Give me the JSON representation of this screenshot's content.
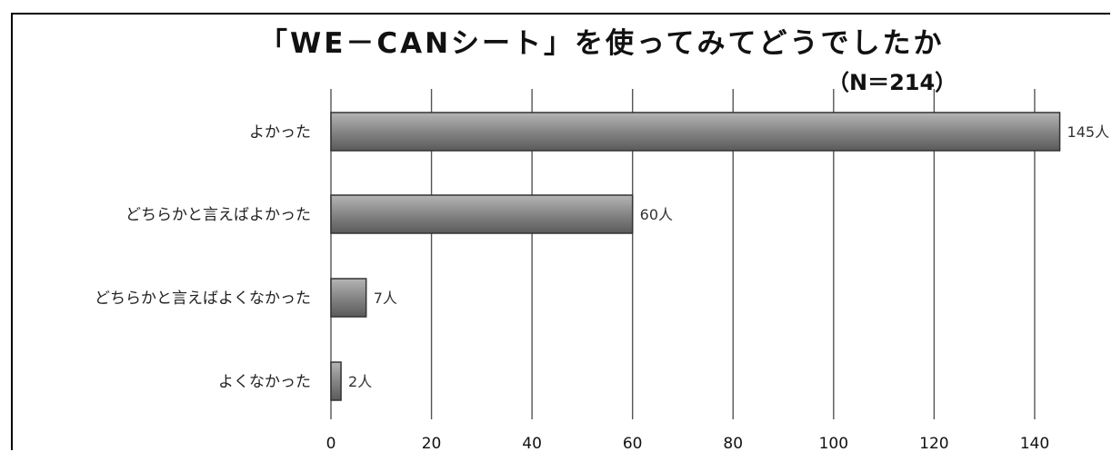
{
  "chart_data": {
    "type": "bar",
    "orientation": "horizontal",
    "title": "「WE－CANシート」を使ってみてどうでしたか",
    "subtitle": "（N＝214）",
    "categories": [
      "よかった",
      "どちらかと言えばよかった",
      "どちらかと言えばよくなかった",
      "よくなかった"
    ],
    "values": [
      145,
      60,
      7,
      2
    ],
    "data_labels": [
      "145人",
      "60人",
      "7人",
      "2人"
    ],
    "xlim": [
      0,
      145
    ],
    "xticks": [
      0,
      20,
      40,
      60,
      80,
      100,
      120,
      140
    ],
    "grid": true,
    "bar_color": "#8a8a8a"
  }
}
